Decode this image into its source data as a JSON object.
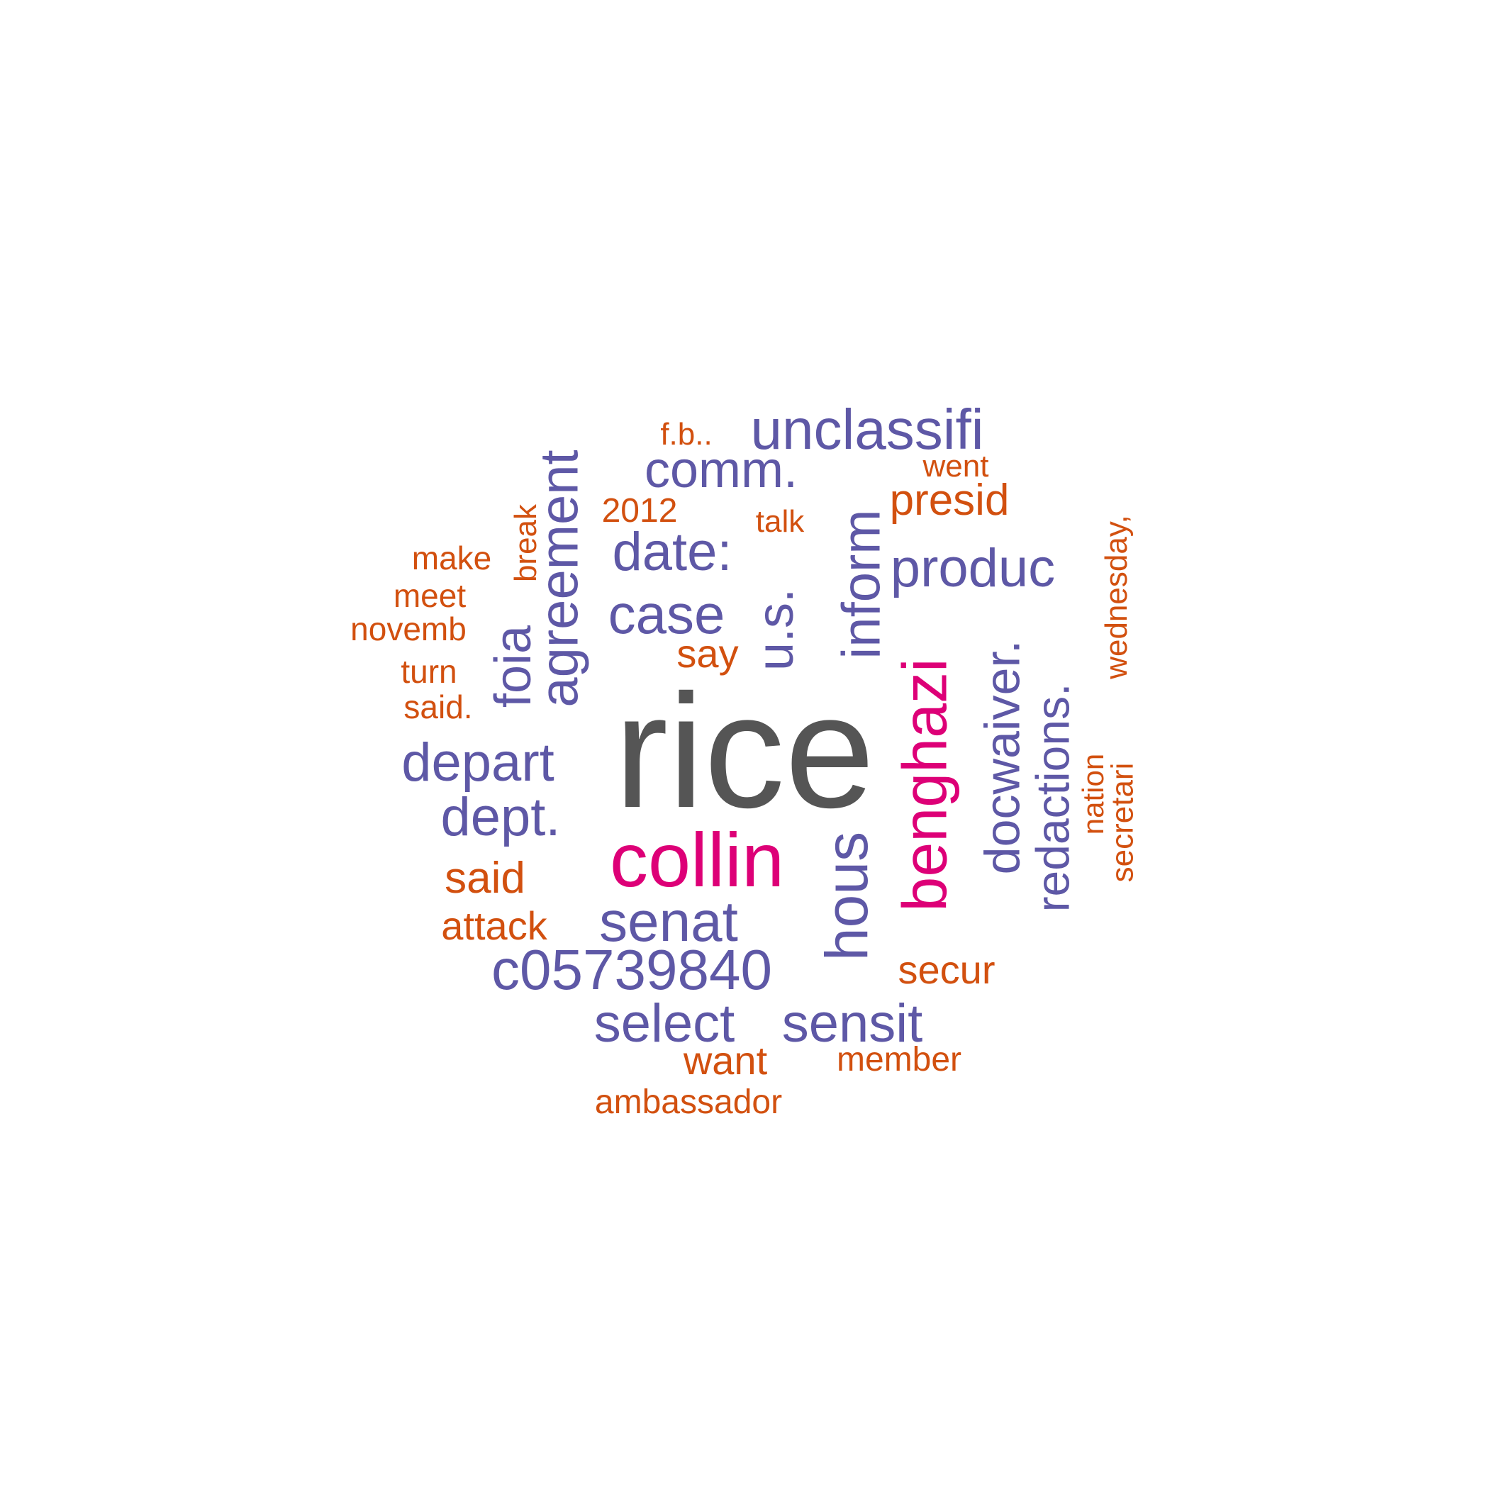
{
  "colors": {
    "primary": "#555555",
    "accent": "#DD0077",
    "secondary": "#5E58A6",
    "tertiary": "#D2500F"
  },
  "words": [
    {
      "text": "rice",
      "color": "primary"
    },
    {
      "text": "collin",
      "color": "accent"
    },
    {
      "text": "benghazi",
      "color": "accent"
    },
    {
      "text": "unclassifi",
      "color": "secondary"
    },
    {
      "text": "comm.",
      "color": "secondary"
    },
    {
      "text": "date:",
      "color": "secondary"
    },
    {
      "text": "case",
      "color": "secondary"
    },
    {
      "text": "produc",
      "color": "secondary"
    },
    {
      "text": "depart",
      "color": "secondary"
    },
    {
      "text": "dept.",
      "color": "secondary"
    },
    {
      "text": "senat",
      "color": "secondary"
    },
    {
      "text": "c05739840",
      "color": "secondary"
    },
    {
      "text": "select",
      "color": "secondary"
    },
    {
      "text": "sensit",
      "color": "secondary"
    },
    {
      "text": "agreement",
      "color": "secondary"
    },
    {
      "text": "foia",
      "color": "secondary"
    },
    {
      "text": "u.s.",
      "color": "secondary"
    },
    {
      "text": "inform",
      "color": "secondary"
    },
    {
      "text": "hous",
      "color": "secondary"
    },
    {
      "text": "docwaiver.",
      "color": "secondary"
    },
    {
      "text": "redactions.",
      "color": "secondary"
    },
    {
      "text": "presid",
      "color": "tertiary"
    },
    {
      "text": "said",
      "color": "tertiary"
    },
    {
      "text": "attack",
      "color": "tertiary"
    },
    {
      "text": "secur",
      "color": "tertiary"
    },
    {
      "text": "want",
      "color": "tertiary"
    },
    {
      "text": "member",
      "color": "tertiary"
    },
    {
      "text": "ambassador",
      "color": "tertiary"
    },
    {
      "text": "f.b..",
      "color": "tertiary"
    },
    {
      "text": "went",
      "color": "tertiary"
    },
    {
      "text": "2012",
      "color": "tertiary"
    },
    {
      "text": "talk",
      "color": "tertiary"
    },
    {
      "text": "make",
      "color": "tertiary"
    },
    {
      "text": "meet",
      "color": "tertiary"
    },
    {
      "text": "novemb",
      "color": "tertiary"
    },
    {
      "text": "turn",
      "color": "tertiary"
    },
    {
      "text": "said.",
      "color": "tertiary"
    },
    {
      "text": "say",
      "color": "tertiary"
    },
    {
      "text": "break",
      "color": "tertiary"
    },
    {
      "text": "wednesday,",
      "color": "tertiary"
    },
    {
      "text": "nation",
      "color": "tertiary"
    },
    {
      "text": "secretari",
      "color": "tertiary"
    }
  ]
}
